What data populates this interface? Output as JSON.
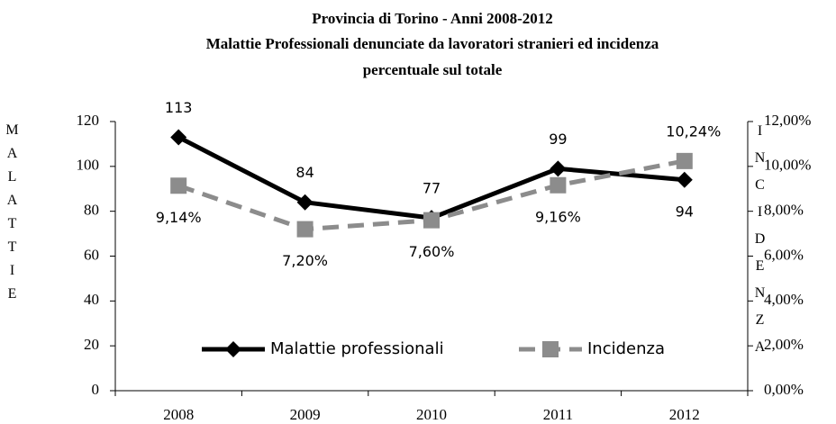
{
  "chart_data": {
    "type": "line",
    "title": [
      "Provincia di Torino - Anni 2008-2012",
      "Malattie Professionali denunciate da lavoratori stranieri ed incidenza",
      "percentuale sul totale"
    ],
    "ylabel": "MALATTIE",
    "y2label": "INCIDENZA",
    "categories": [
      "2008",
      "2009",
      "2010",
      "2011",
      "2012"
    ],
    "series": [
      {
        "name": "Malattie professionali",
        "color": "#000000",
        "values": [
          113,
          84,
          77,
          99,
          94
        ]
      },
      {
        "name": "Incidenza",
        "color": "#8c8c8c",
        "axis": "y2",
        "values": [
          9.14,
          7.2,
          7.6,
          9.16,
          10.24
        ],
        "value_labels": [
          "9,14%",
          "7,20%",
          "7,60%",
          "9,16%",
          "10,24%"
        ]
      }
    ],
    "ylim": [
      0,
      120
    ],
    "yticks": [
      0,
      20,
      40,
      60,
      80,
      100,
      120
    ],
    "y2lim": [
      0,
      12
    ],
    "y2ticks": [
      {
        "value": 0,
        "label": "0,00%"
      },
      {
        "value": 2,
        "label": "2,00%"
      },
      {
        "value": 4,
        "label": "4,00%"
      },
      {
        "value": 6,
        "label": "6,00%"
      },
      {
        "value": 8,
        "label": "8,00%"
      },
      {
        "value": 10,
        "label": "10,00%"
      },
      {
        "value": 12,
        "label": "12,00%"
      }
    ],
    "legend": "bottom-inside"
  }
}
